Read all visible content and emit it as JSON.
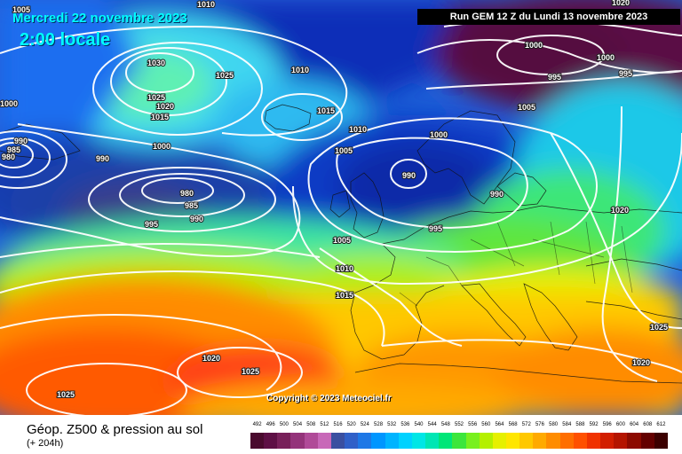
{
  "header": {
    "date": "Mercredi 22 novembre 2023",
    "local_time": "2:00 locale",
    "run": "Run GEM 12 Z du Lundi 13 novembre 2023"
  },
  "copyright": "Copyright © 2023 Meteociel.fr",
  "footer": {
    "title": "Géop. Z500 & pression au sol",
    "subtitle": "(+ 204h)"
  },
  "scale": {
    "labels": [
      "492",
      "496",
      "500",
      "504",
      "508",
      "512",
      "516",
      "520",
      "524",
      "528",
      "532",
      "536",
      "540",
      "544",
      "548",
      "552",
      "556",
      "560",
      "564",
      "568",
      "572",
      "576",
      "580",
      "584",
      "588",
      "592",
      "596",
      "600",
      "604",
      "608",
      "612"
    ],
    "colors": [
      "#4a0a2e",
      "#5e0f45",
      "#78205a",
      "#94337a",
      "#b04a98",
      "#c868b8",
      "#3a4fa0",
      "#3060c8",
      "#1e78e6",
      "#0096ff",
      "#00b4ff",
      "#00d2ff",
      "#00e6e6",
      "#00e6b4",
      "#00e678",
      "#3ce63c",
      "#78f01e",
      "#b4f000",
      "#e6f000",
      "#ffe600",
      "#ffc800",
      "#ffaa00",
      "#ff8c00",
      "#ff6e00",
      "#ff5000",
      "#f03200",
      "#d21e00",
      "#b41400",
      "#8c0a00",
      "#640000",
      "#3c0000"
    ]
  },
  "isobar_labels": [
    {
      "text": "1005"
    },
    {
      "text": "1010"
    },
    {
      "text": "1030"
    },
    {
      "text": "1025"
    },
    {
      "text": "1025"
    },
    {
      "text": "1020"
    },
    {
      "text": "1015"
    },
    {
      "text": "1000"
    },
    {
      "text": "1010"
    },
    {
      "text": "1015"
    },
    {
      "text": "990"
    },
    {
      "text": "985"
    },
    {
      "text": "980"
    },
    {
      "text": "990"
    },
    {
      "text": "1000"
    },
    {
      "text": "980"
    },
    {
      "text": "985"
    },
    {
      "text": "990"
    },
    {
      "text": "995"
    },
    {
      "text": "1010"
    },
    {
      "text": "1000"
    },
    {
      "text": "1005"
    },
    {
      "text": "990"
    },
    {
      "text": "990"
    },
    {
      "text": "995"
    },
    {
      "text": "1005"
    },
    {
      "text": "1010"
    },
    {
      "text": "1015"
    },
    {
      "text": "1000"
    },
    {
      "text": "1000"
    },
    {
      "text": "995"
    },
    {
      "text": "995"
    },
    {
      "text": "1005"
    },
    {
      "text": "1020"
    },
    {
      "text": "1020"
    },
    {
      "text": "1025"
    },
    {
      "text": "1020"
    },
    {
      "text": "1025"
    },
    {
      "text": "1025"
    },
    {
      "text": "1020"
    }
  ]
}
